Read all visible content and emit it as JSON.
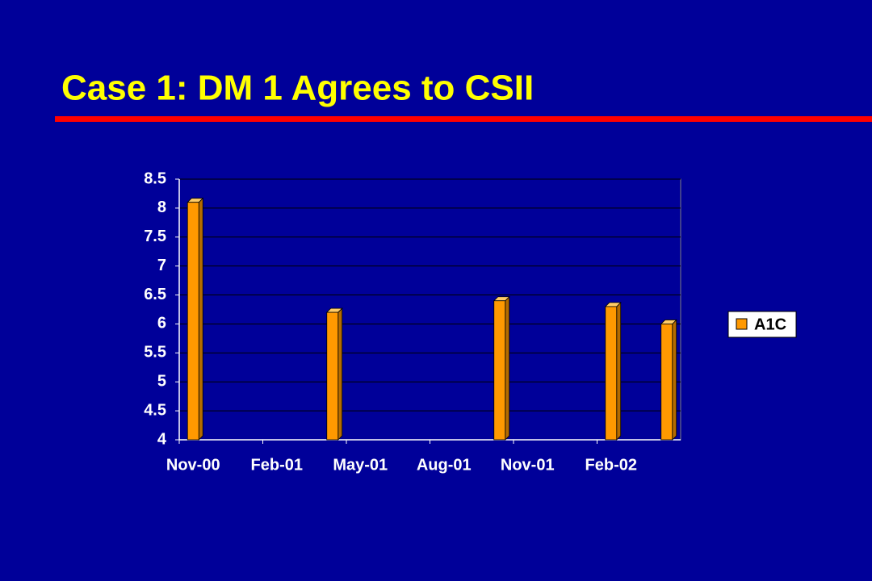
{
  "chart_data": {
    "type": "bar",
    "title": "Case 1: DM 1 Agrees to CSII",
    "x": [
      "Nov-00",
      "Apr-01",
      "Oct-01",
      "Feb-02",
      "Apr-02"
    ],
    "xlim": [
      "Nov-00",
      "Apr-02"
    ],
    "xticks": [
      "Nov-00",
      "Feb-01",
      "May-01",
      "Aug-01",
      "Nov-01",
      "Feb-02"
    ],
    "series": [
      {
        "name": "A1C",
        "color": "#ff9900",
        "values": [
          8.1,
          6.2,
          6.4,
          6.3,
          6.0
        ]
      }
    ],
    "ylim": [
      4,
      8.5
    ],
    "yticks": [
      4,
      4.5,
      5,
      5.5,
      6,
      6.5,
      7,
      7.5,
      8,
      8.5
    ],
    "grid": true,
    "legend": "right"
  }
}
